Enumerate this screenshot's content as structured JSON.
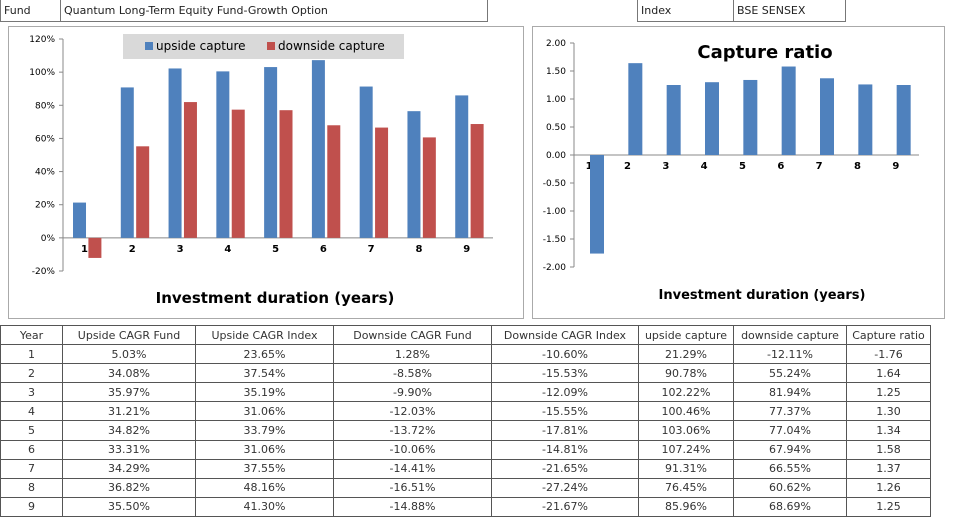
{
  "header": {
    "fund_label": "Fund",
    "fund_name": "Quantum Long-Term Equity Fund-Growth Option",
    "index_label": "Index",
    "index_name": "BSE SENSEX"
  },
  "chart_data": [
    {
      "type": "bar",
      "title": "",
      "xlabel": "Investment duration (years)",
      "ylabel": "",
      "categories": [
        "1",
        "2",
        "3",
        "4",
        "5",
        "6",
        "7",
        "8",
        "9"
      ],
      "series": [
        {
          "name": "upside capture",
          "color": "#4F81BD",
          "values": [
            21.29,
            90.78,
            102.22,
            100.46,
            103.06,
            107.24,
            91.31,
            76.45,
            85.96
          ]
        },
        {
          "name": "downside capture",
          "color": "#C0504D",
          "values": [
            -12.11,
            55.24,
            81.94,
            77.37,
            77.04,
            67.94,
            66.55,
            60.62,
            68.69
          ]
        }
      ],
      "ylim": [
        -20,
        120
      ],
      "yticks": [
        "-20%",
        "0%",
        "20%",
        "40%",
        "60%",
        "80%",
        "100%",
        "120%"
      ],
      "legend": "top-center",
      "grid": false
    },
    {
      "type": "bar",
      "title": "Capture ratio",
      "xlabel": "Investment duration (years)",
      "ylabel": "",
      "categories": [
        "1",
        "2",
        "3",
        "4",
        "5",
        "6",
        "7",
        "8",
        "9"
      ],
      "series": [
        {
          "color": "#4F81BD",
          "values": [
            -1.76,
            1.64,
            1.25,
            1.3,
            1.34,
            1.58,
            1.37,
            1.26,
            1.25
          ]
        }
      ],
      "ylim": [
        -2,
        2
      ],
      "yticks": [
        "-2.00",
        "-1.50",
        "-1.00",
        "-0.50",
        "0.00",
        "0.50",
        "1.00",
        "1.50",
        "2.00"
      ],
      "grid": false
    }
  ],
  "table": {
    "headers": [
      "Year",
      "Upside CAGR Fund",
      "Upside CAGR  Index",
      "Downside CAGR Fund",
      "Downside CAGR Index",
      "upside capture",
      "downside capture",
      "Capture ratio"
    ],
    "rows": [
      [
        "1",
        "5.03%",
        "23.65%",
        "1.28%",
        "-10.60%",
        "21.29%",
        "-12.11%",
        "-1.76"
      ],
      [
        "2",
        "34.08%",
        "37.54%",
        "-8.58%",
        "-15.53%",
        "90.78%",
        "55.24%",
        "1.64"
      ],
      [
        "3",
        "35.97%",
        "35.19%",
        "-9.90%",
        "-12.09%",
        "102.22%",
        "81.94%",
        "1.25"
      ],
      [
        "4",
        "31.21%",
        "31.06%",
        "-12.03%",
        "-15.55%",
        "100.46%",
        "77.37%",
        "1.30"
      ],
      [
        "5",
        "34.82%",
        "33.79%",
        "-13.72%",
        "-17.81%",
        "103.06%",
        "77.04%",
        "1.34"
      ],
      [
        "6",
        "33.31%",
        "31.06%",
        "-10.06%",
        "-14.81%",
        "107.24%",
        "67.94%",
        "1.58"
      ],
      [
        "7",
        "34.29%",
        "37.55%",
        "-14.41%",
        "-21.65%",
        "91.31%",
        "66.55%",
        "1.37"
      ],
      [
        "8",
        "36.82%",
        "48.16%",
        "-16.51%",
        "-27.24%",
        "76.45%",
        "60.62%",
        "1.26"
      ],
      [
        "9",
        "35.50%",
        "41.30%",
        "-14.88%",
        "-21.67%",
        "85.96%",
        "68.69%",
        "1.25"
      ]
    ]
  }
}
